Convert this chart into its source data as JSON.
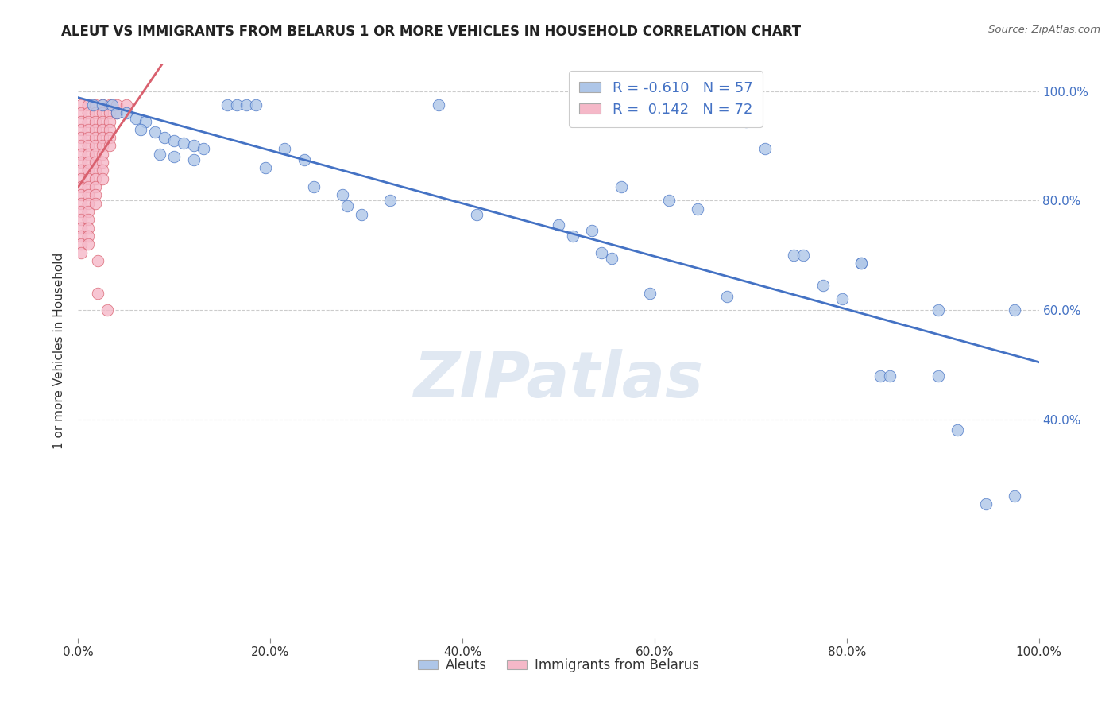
{
  "title": "ALEUT VS IMMIGRANTS FROM BELARUS 1 OR MORE VEHICLES IN HOUSEHOLD CORRELATION CHART",
  "source": "Source: ZipAtlas.com",
  "ylabel": "1 or more Vehicles in Household",
  "legend_label_blue": "Aleuts",
  "legend_label_pink": "Immigrants from Belarus",
  "r_blue": -0.61,
  "n_blue": 57,
  "r_pink": 0.142,
  "n_pink": 72,
  "xmin": 0.0,
  "xmax": 1.0,
  "ymin": 0.0,
  "ymax": 1.05,
  "xtick_labels": [
    "0.0%",
    "20.0%",
    "40.0%",
    "60.0%",
    "80.0%",
    "100.0%"
  ],
  "xtick_values": [
    0.0,
    0.2,
    0.4,
    0.6,
    0.8,
    1.0
  ],
  "ytick_vals": [
    0.4,
    0.6,
    0.8,
    1.0
  ],
  "ytick_labels": [
    "40.0%",
    "60.0%",
    "80.0%",
    "100.0%"
  ],
  "color_blue": "#aec6e8",
  "color_pink": "#f5b8c8",
  "line_color_blue": "#4472c4",
  "line_color_pink": "#d9606e",
  "background_color": "#ffffff",
  "watermark": "ZIPatlas",
  "blue_points": [
    [
      0.015,
      0.975
    ],
    [
      0.025,
      0.975
    ],
    [
      0.035,
      0.975
    ],
    [
      0.04,
      0.96
    ],
    [
      0.05,
      0.96
    ],
    [
      0.06,
      0.95
    ],
    [
      0.07,
      0.945
    ],
    [
      0.065,
      0.93
    ],
    [
      0.08,
      0.925
    ],
    [
      0.09,
      0.915
    ],
    [
      0.1,
      0.91
    ],
    [
      0.11,
      0.905
    ],
    [
      0.12,
      0.9
    ],
    [
      0.13,
      0.895
    ],
    [
      0.155,
      0.975
    ],
    [
      0.165,
      0.975
    ],
    [
      0.175,
      0.975
    ],
    [
      0.185,
      0.975
    ],
    [
      0.085,
      0.885
    ],
    [
      0.1,
      0.88
    ],
    [
      0.12,
      0.875
    ],
    [
      0.215,
      0.895
    ],
    [
      0.235,
      0.875
    ],
    [
      0.195,
      0.86
    ],
    [
      0.245,
      0.825
    ],
    [
      0.275,
      0.81
    ],
    [
      0.28,
      0.79
    ],
    [
      0.295,
      0.775
    ],
    [
      0.325,
      0.8
    ],
    [
      0.375,
      0.975
    ],
    [
      0.415,
      0.775
    ],
    [
      0.5,
      0.755
    ],
    [
      0.515,
      0.735
    ],
    [
      0.535,
      0.745
    ],
    [
      0.545,
      0.705
    ],
    [
      0.555,
      0.695
    ],
    [
      0.565,
      0.825
    ],
    [
      0.595,
      0.63
    ],
    [
      0.615,
      0.8
    ],
    [
      0.645,
      0.785
    ],
    [
      0.675,
      0.625
    ],
    [
      0.695,
      0.945
    ],
    [
      0.715,
      0.895
    ],
    [
      0.745,
      0.7
    ],
    [
      0.755,
      0.7
    ],
    [
      0.775,
      0.645
    ],
    [
      0.795,
      0.62
    ],
    [
      0.815,
      0.685
    ],
    [
      0.815,
      0.685
    ],
    [
      0.835,
      0.48
    ],
    [
      0.845,
      0.48
    ],
    [
      0.895,
      0.6
    ],
    [
      0.895,
      0.48
    ],
    [
      0.915,
      0.38
    ],
    [
      0.945,
      0.245
    ],
    [
      0.975,
      0.6
    ],
    [
      0.975,
      0.26
    ]
  ],
  "pink_points": [
    [
      0.003,
      0.975
    ],
    [
      0.003,
      0.96
    ],
    [
      0.003,
      0.945
    ],
    [
      0.003,
      0.93
    ],
    [
      0.003,
      0.915
    ],
    [
      0.003,
      0.9
    ],
    [
      0.003,
      0.885
    ],
    [
      0.003,
      0.87
    ],
    [
      0.003,
      0.855
    ],
    [
      0.003,
      0.84
    ],
    [
      0.003,
      0.825
    ],
    [
      0.003,
      0.81
    ],
    [
      0.003,
      0.795
    ],
    [
      0.003,
      0.78
    ],
    [
      0.003,
      0.765
    ],
    [
      0.003,
      0.75
    ],
    [
      0.003,
      0.735
    ],
    [
      0.003,
      0.72
    ],
    [
      0.003,
      0.705
    ],
    [
      0.01,
      0.975
    ],
    [
      0.01,
      0.96
    ],
    [
      0.01,
      0.945
    ],
    [
      0.01,
      0.93
    ],
    [
      0.01,
      0.915
    ],
    [
      0.01,
      0.9
    ],
    [
      0.01,
      0.885
    ],
    [
      0.01,
      0.87
    ],
    [
      0.01,
      0.855
    ],
    [
      0.01,
      0.84
    ],
    [
      0.01,
      0.825
    ],
    [
      0.01,
      0.81
    ],
    [
      0.01,
      0.795
    ],
    [
      0.01,
      0.78
    ],
    [
      0.01,
      0.765
    ],
    [
      0.01,
      0.75
    ],
    [
      0.01,
      0.735
    ],
    [
      0.01,
      0.72
    ],
    [
      0.018,
      0.975
    ],
    [
      0.018,
      0.96
    ],
    [
      0.018,
      0.945
    ],
    [
      0.018,
      0.93
    ],
    [
      0.018,
      0.915
    ],
    [
      0.018,
      0.9
    ],
    [
      0.018,
      0.885
    ],
    [
      0.018,
      0.87
    ],
    [
      0.018,
      0.855
    ],
    [
      0.018,
      0.84
    ],
    [
      0.018,
      0.825
    ],
    [
      0.018,
      0.81
    ],
    [
      0.018,
      0.795
    ],
    [
      0.025,
      0.975
    ],
    [
      0.025,
      0.96
    ],
    [
      0.025,
      0.945
    ],
    [
      0.025,
      0.93
    ],
    [
      0.025,
      0.915
    ],
    [
      0.025,
      0.9
    ],
    [
      0.025,
      0.885
    ],
    [
      0.025,
      0.87
    ],
    [
      0.025,
      0.855
    ],
    [
      0.025,
      0.84
    ],
    [
      0.033,
      0.975
    ],
    [
      0.033,
      0.96
    ],
    [
      0.033,
      0.945
    ],
    [
      0.033,
      0.93
    ],
    [
      0.033,
      0.915
    ],
    [
      0.033,
      0.9
    ],
    [
      0.04,
      0.975
    ],
    [
      0.04,
      0.96
    ],
    [
      0.05,
      0.975
    ],
    [
      0.02,
      0.69
    ],
    [
      0.02,
      0.63
    ],
    [
      0.03,
      0.6
    ]
  ]
}
